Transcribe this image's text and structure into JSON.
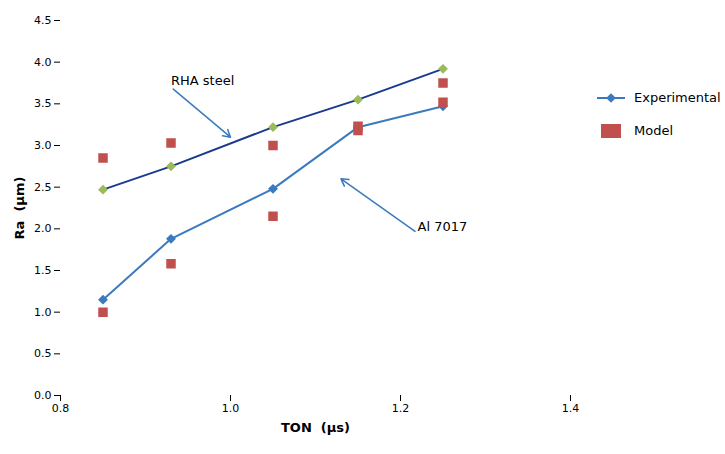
{
  "chart_data": {
    "type": "line",
    "x": [
      0.85,
      0.93,
      1.05,
      1.15,
      1.25
    ],
    "series": [
      {
        "name": "Experimental",
        "type": "line",
        "marker": "diamond",
        "color": "#1a3a8f",
        "colors": [
          "#9bbb59",
          "#9bbb59",
          "#9bbb59",
          "#9bbb59",
          "#9bbb59"
        ],
        "values": [
          2.47,
          2.75,
          3.22,
          3.55,
          3.92
        ]
      },
      {
        "name": "Experimental",
        "type": "line",
        "marker": "diamond",
        "color": "#3a7abf",
        "values": [
          1.15,
          1.88,
          2.48,
          3.22,
          3.47
        ]
      },
      {
        "name": "Model",
        "type": "scatter",
        "marker": "square",
        "color": "#c0504d",
        "values": [
          2.85,
          3.03,
          3.0,
          3.23,
          3.75
        ]
      },
      {
        "name": "Model",
        "type": "scatter",
        "marker": "square",
        "color": "#c0504d",
        "values": [
          1.0,
          1.58,
          2.15,
          3.18,
          3.52
        ]
      }
    ],
    "xlabel": "TON  (μs)",
    "ylabel": "Ra  (μm)",
    "xlim": [
      0.8,
      1.4
    ],
    "ylim": [
      0,
      4.5
    ],
    "xticks": [
      0.8,
      {
        "value": 1.0,
        "label": "1.0"
      },
      1.2,
      1.4
    ],
    "yticks": [
      {
        "value": 0,
        "label": "0.0"
      },
      0.5,
      {
        "value": 1.0,
        "label": "1.0"
      },
      1.5,
      {
        "value": 2.0,
        "label": "2.0"
      },
      2.5,
      {
        "value": 3.0,
        "label": "3.0"
      },
      3.5,
      {
        "value": 4.0,
        "label": "4.0"
      },
      4.5
    ],
    "annotations": [
      {
        "text": "RHA steel",
        "x": 0.93,
        "y": 3.7,
        "arrow_x": 1.0,
        "arrow_y": 3.1,
        "color": "#3a7abf"
      },
      {
        "text": "Al 7017",
        "x": 1.22,
        "y": 1.95,
        "arrow_x": 1.13,
        "arrow_y": 2.6,
        "color": "#3a7abf"
      }
    ],
    "grid": false,
    "legend": "right"
  }
}
